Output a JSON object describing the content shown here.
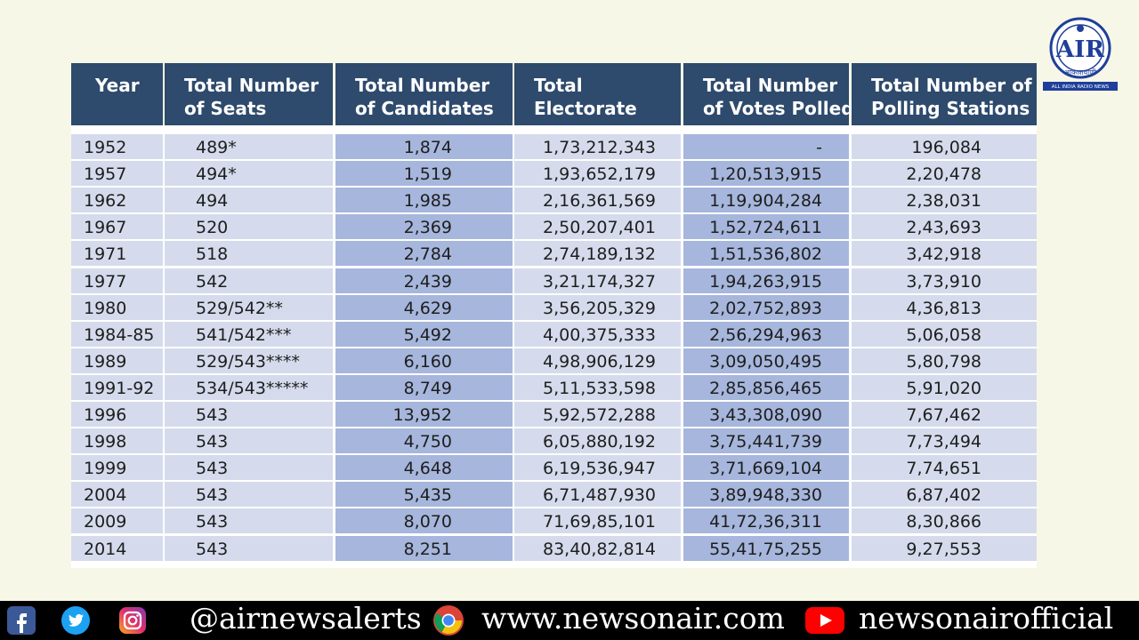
{
  "table": {
    "headers": [
      [
        "Year",
        ""
      ],
      [
        "Total Number",
        "of Seats"
      ],
      [
        "Total Number",
        "of Candidates"
      ],
      [
        "Total",
        "Electorate"
      ],
      [
        "Total Number",
        "of Votes Polled"
      ],
      [
        "Total Number of",
        "Polling Stations"
      ]
    ],
    "rows": [
      [
        "1952",
        "489*",
        "1,874",
        "1,73,212,343",
        "-",
        "196,084"
      ],
      [
        "1957",
        "494*",
        "1,519",
        "1,93,652,179",
        "1,20,513,915",
        "2,20,478"
      ],
      [
        "1962",
        "494",
        "1,985",
        "2,16,361,569",
        "1,19,904,284",
        "2,38,031"
      ],
      [
        "1967",
        "520",
        "2,369",
        "2,50,207,401",
        "1,52,724,611",
        "2,43,693"
      ],
      [
        "1971",
        "518",
        "2,784",
        "2,74,189,132",
        "1,51,536,802",
        "3,42,918"
      ],
      [
        "1977",
        "542",
        "2,439",
        "3,21,174,327",
        "1,94,263,915",
        "3,73,910"
      ],
      [
        "1980",
        "529/542**",
        "4,629",
        "3,56,205,329",
        "2,02,752,893",
        "4,36,813"
      ],
      [
        "1984-85",
        "541/542***",
        "5,492",
        "4,00,375,333",
        "2,56,294,963",
        "5,06,058"
      ],
      [
        "1989",
        "529/543****",
        "6,160",
        "4,98,906,129",
        "3,09,050,495",
        "5,80,798"
      ],
      [
        "1991-92",
        "534/543*****",
        "8,749",
        "5,11,533,598",
        "2,85,856,465",
        "5,91,020"
      ],
      [
        "1996",
        "543",
        "13,952",
        "5,92,572,288",
        "3,43,308,090",
        "7,67,462"
      ],
      [
        "1998",
        "543",
        "4,750",
        "6,05,880,192",
        "3,75,441,739",
        "7,73,494"
      ],
      [
        "1999",
        "543",
        "4,648",
        "6,19,536,947",
        "3,71,669,104",
        "7,74,651"
      ],
      [
        "2004",
        "543",
        "5,435",
        "6,71,487,930",
        "3,89,948,330",
        "6,87,402"
      ],
      [
        "2009",
        "543",
        "8,070",
        "71,69,85,101",
        "41,72,36,311",
        "8,30,866"
      ],
      [
        "2014",
        "543",
        "8,251",
        "83,40,82,814",
        "55,41,75,255",
        "9,27,553"
      ]
    ]
  },
  "logo": {
    "name": "air-logo",
    "caption": "ALL INDIA RADIO NEWS",
    "hindi": "आकाशवाणी",
    "color": "#1f3f9a"
  },
  "footer": {
    "twitter_handle": "@airnewsalerts",
    "website": "www.newsonair.com",
    "youtube_channel": "newsonairofficial",
    "icons": [
      "facebook-icon",
      "twitter-icon",
      "instagram-icon",
      "chrome-icon",
      "youtube-icon"
    ]
  },
  "colors": {
    "header_bg": "#2e4a6c",
    "cell_light": "#d5dbec",
    "cell_dark": "#a6b6dc",
    "page_bg": "#f6f7e6"
  }
}
